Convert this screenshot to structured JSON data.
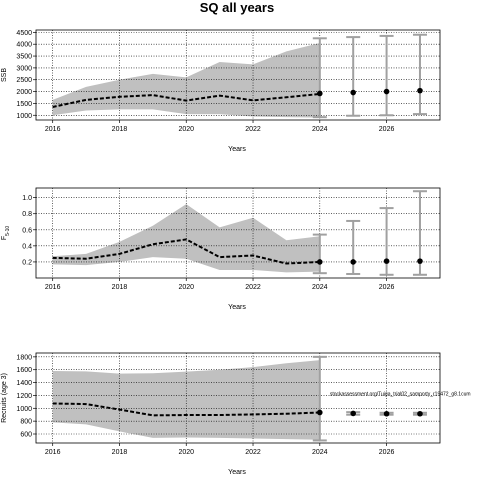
{
  "chart_data": {
    "title": "SQ all years",
    "panels": [
      {
        "id": "ssb",
        "type": "line",
        "ylabel": "SSB",
        "xlabel": "Years",
        "xlim": [
          2015.5,
          2027.6
        ],
        "ylim": [
          800,
          4600
        ],
        "xticks": [
          2016,
          2018,
          2020,
          2022,
          2024,
          2026
        ],
        "yticks": [
          1000,
          1500,
          2000,
          2500,
          3000,
          3500,
          4000,
          4500
        ],
        "grid": true,
        "assessment": {
          "x": [
            2016,
            2017,
            2018,
            2019,
            2020,
            2021,
            2022,
            2023,
            2024
          ],
          "median": [
            1350,
            1650,
            1780,
            1850,
            1620,
            1830,
            1630,
            1760,
            1900
          ],
          "lower": [
            1000,
            1200,
            1250,
            1250,
            1050,
            1050,
            950,
            920,
            900
          ],
          "upper": [
            1650,
            2200,
            2500,
            2750,
            2600,
            3250,
            3150,
            3700,
            4050
          ]
        },
        "projection": {
          "x": [
            2024,
            2025,
            2026,
            2027
          ],
          "median": [
            1920,
            1960,
            2000,
            2040
          ],
          "lower": [
            920,
            980,
            1000,
            1050
          ],
          "upper": [
            4250,
            4300,
            4350,
            4400
          ]
        }
      },
      {
        "id": "f",
        "type": "line",
        "ylabel": "F5-10",
        "ylabel_main": "F",
        "ylabel_sub": "5-10",
        "xlabel": "Years",
        "xlim": [
          2015.5,
          2027.6
        ],
        "ylim": [
          0.0,
          1.12
        ],
        "xticks": [
          2016,
          2018,
          2020,
          2022,
          2024,
          2026
        ],
        "yticks": [
          0.2,
          0.4,
          0.6,
          0.8,
          1.0
        ],
        "grid": true,
        "assessment": {
          "x": [
            2016,
            2017,
            2018,
            2019,
            2020,
            2021,
            2022,
            2023,
            2024
          ],
          "median": [
            0.25,
            0.24,
            0.3,
            0.42,
            0.48,
            0.26,
            0.28,
            0.18,
            0.2
          ],
          "lower": [
            0.17,
            0.16,
            0.2,
            0.26,
            0.24,
            0.1,
            0.1,
            0.07,
            0.08
          ],
          "upper": [
            0.27,
            0.3,
            0.45,
            0.65,
            0.92,
            0.63,
            0.75,
            0.47,
            0.52
          ]
        },
        "projection": {
          "x": [
            2024,
            2025,
            2026,
            2027
          ],
          "median": [
            0.2,
            0.2,
            0.21,
            0.21
          ],
          "lower": [
            0.06,
            0.05,
            0.04,
            0.04
          ],
          "upper": [
            0.54,
            0.71,
            0.87,
            1.08
          ]
        }
      },
      {
        "id": "rec",
        "type": "line",
        "ylabel": "Recruits (age 3)",
        "xlabel": "Years",
        "xlim": [
          2015.5,
          2027.6
        ],
        "ylim": [
          460,
          1860
        ],
        "xticks": [
          2016,
          2018,
          2020,
          2022,
          2024,
          2026
        ],
        "yticks": [
          600,
          800,
          1000,
          1200,
          1400,
          1600,
          1800
        ],
        "grid": true,
        "annotation": "stockassessment.org/Tuiga_trial02_samporty_r19472_g8.1cum",
        "assessment": {
          "x": [
            2016,
            2017,
            2018,
            2019,
            2020,
            2021,
            2022,
            2023,
            2024
          ],
          "median": [
            1075,
            1065,
            980,
            890,
            895,
            895,
            905,
            915,
            935
          ],
          "lower": [
            780,
            750,
            640,
            540,
            545,
            540,
            530,
            520,
            510
          ],
          "upper": [
            1580,
            1575,
            1540,
            1545,
            1570,
            1600,
            1640,
            1700,
            1750
          ]
        },
        "projection": {
          "x": [
            2024,
            2025,
            2026,
            2027
          ],
          "median": [
            935,
            920,
            915,
            915
          ],
          "lower": [
            500,
            900,
            900,
            900
          ],
          "upper": [
            1800,
            940,
            930,
            930
          ]
        }
      }
    ]
  }
}
